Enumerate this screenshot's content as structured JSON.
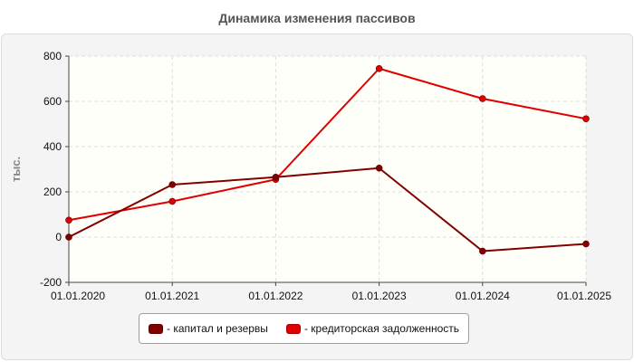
{
  "chart_data": {
    "type": "line",
    "title": "Динамика изменения пассивов",
    "ylabel": "тыс.",
    "xlabel": "",
    "categories": [
      "01.01.2020",
      "01.01.2021",
      "01.01.2022",
      "01.01.2023",
      "01.01.2024",
      "01.01.2025"
    ],
    "ylim": [
      -200,
      800
    ],
    "yticks": [
      -200,
      0,
      200,
      400,
      600,
      800
    ],
    "grid": true,
    "legend_position": "bottom",
    "series": [
      {
        "name": "- капитал и резервы",
        "color": "#800000",
        "values": [
          0,
          232,
          265,
          305,
          -62,
          -30
        ]
      },
      {
        "name": "- кредиторская задолженность",
        "color": "#e00000",
        "values": [
          75,
          158,
          255,
          745,
          612,
          523
        ]
      }
    ]
  }
}
